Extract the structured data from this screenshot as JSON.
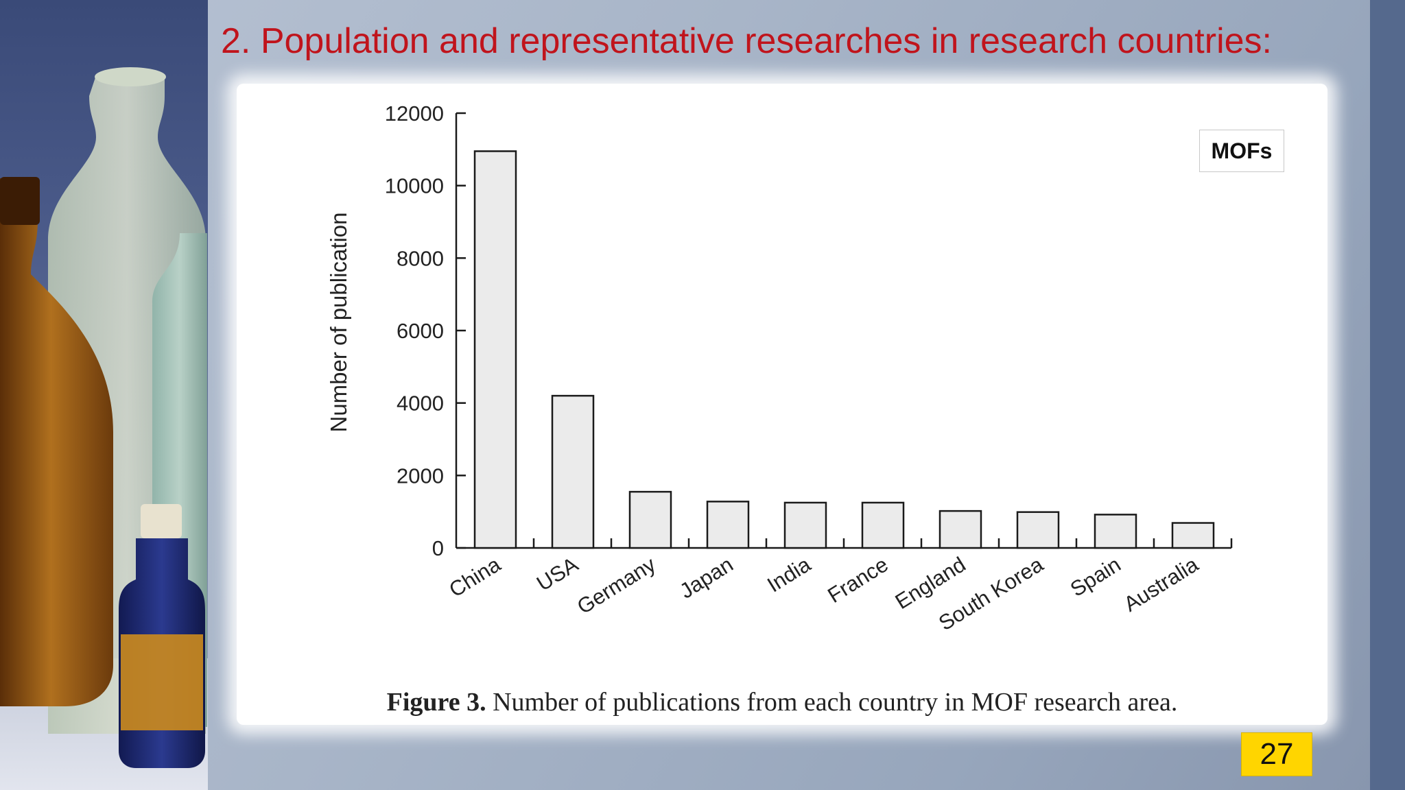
{
  "slide": {
    "title": "2. Population and representative researches in research countries:",
    "page_number": "27"
  },
  "figure": {
    "caption_label": "Figure 3.",
    "caption_text": " Number of publications from each country in MOF research area.",
    "legend_label": "MOFs"
  },
  "colors": {
    "title": "#c0141c",
    "bar_fill": "#ebebeb",
    "bar_stroke": "#1a1a1a",
    "badge": "#ffd500"
  },
  "chart_data": {
    "type": "bar",
    "title": "",
    "xlabel": "",
    "ylabel": "Number of publication",
    "ylim": [
      0,
      12000
    ],
    "yticks": [
      0,
      2000,
      4000,
      6000,
      8000,
      10000,
      12000
    ],
    "categories": [
      "China",
      "USA",
      "Germany",
      "Japan",
      "India",
      "France",
      "England",
      "South Korea",
      "Spain",
      "Australia"
    ],
    "series": [
      {
        "name": "MOFs",
        "values": [
          10950,
          4200,
          1550,
          1280,
          1250,
          1250,
          1020,
          990,
          920,
          690
        ]
      }
    ],
    "grid": false
  }
}
